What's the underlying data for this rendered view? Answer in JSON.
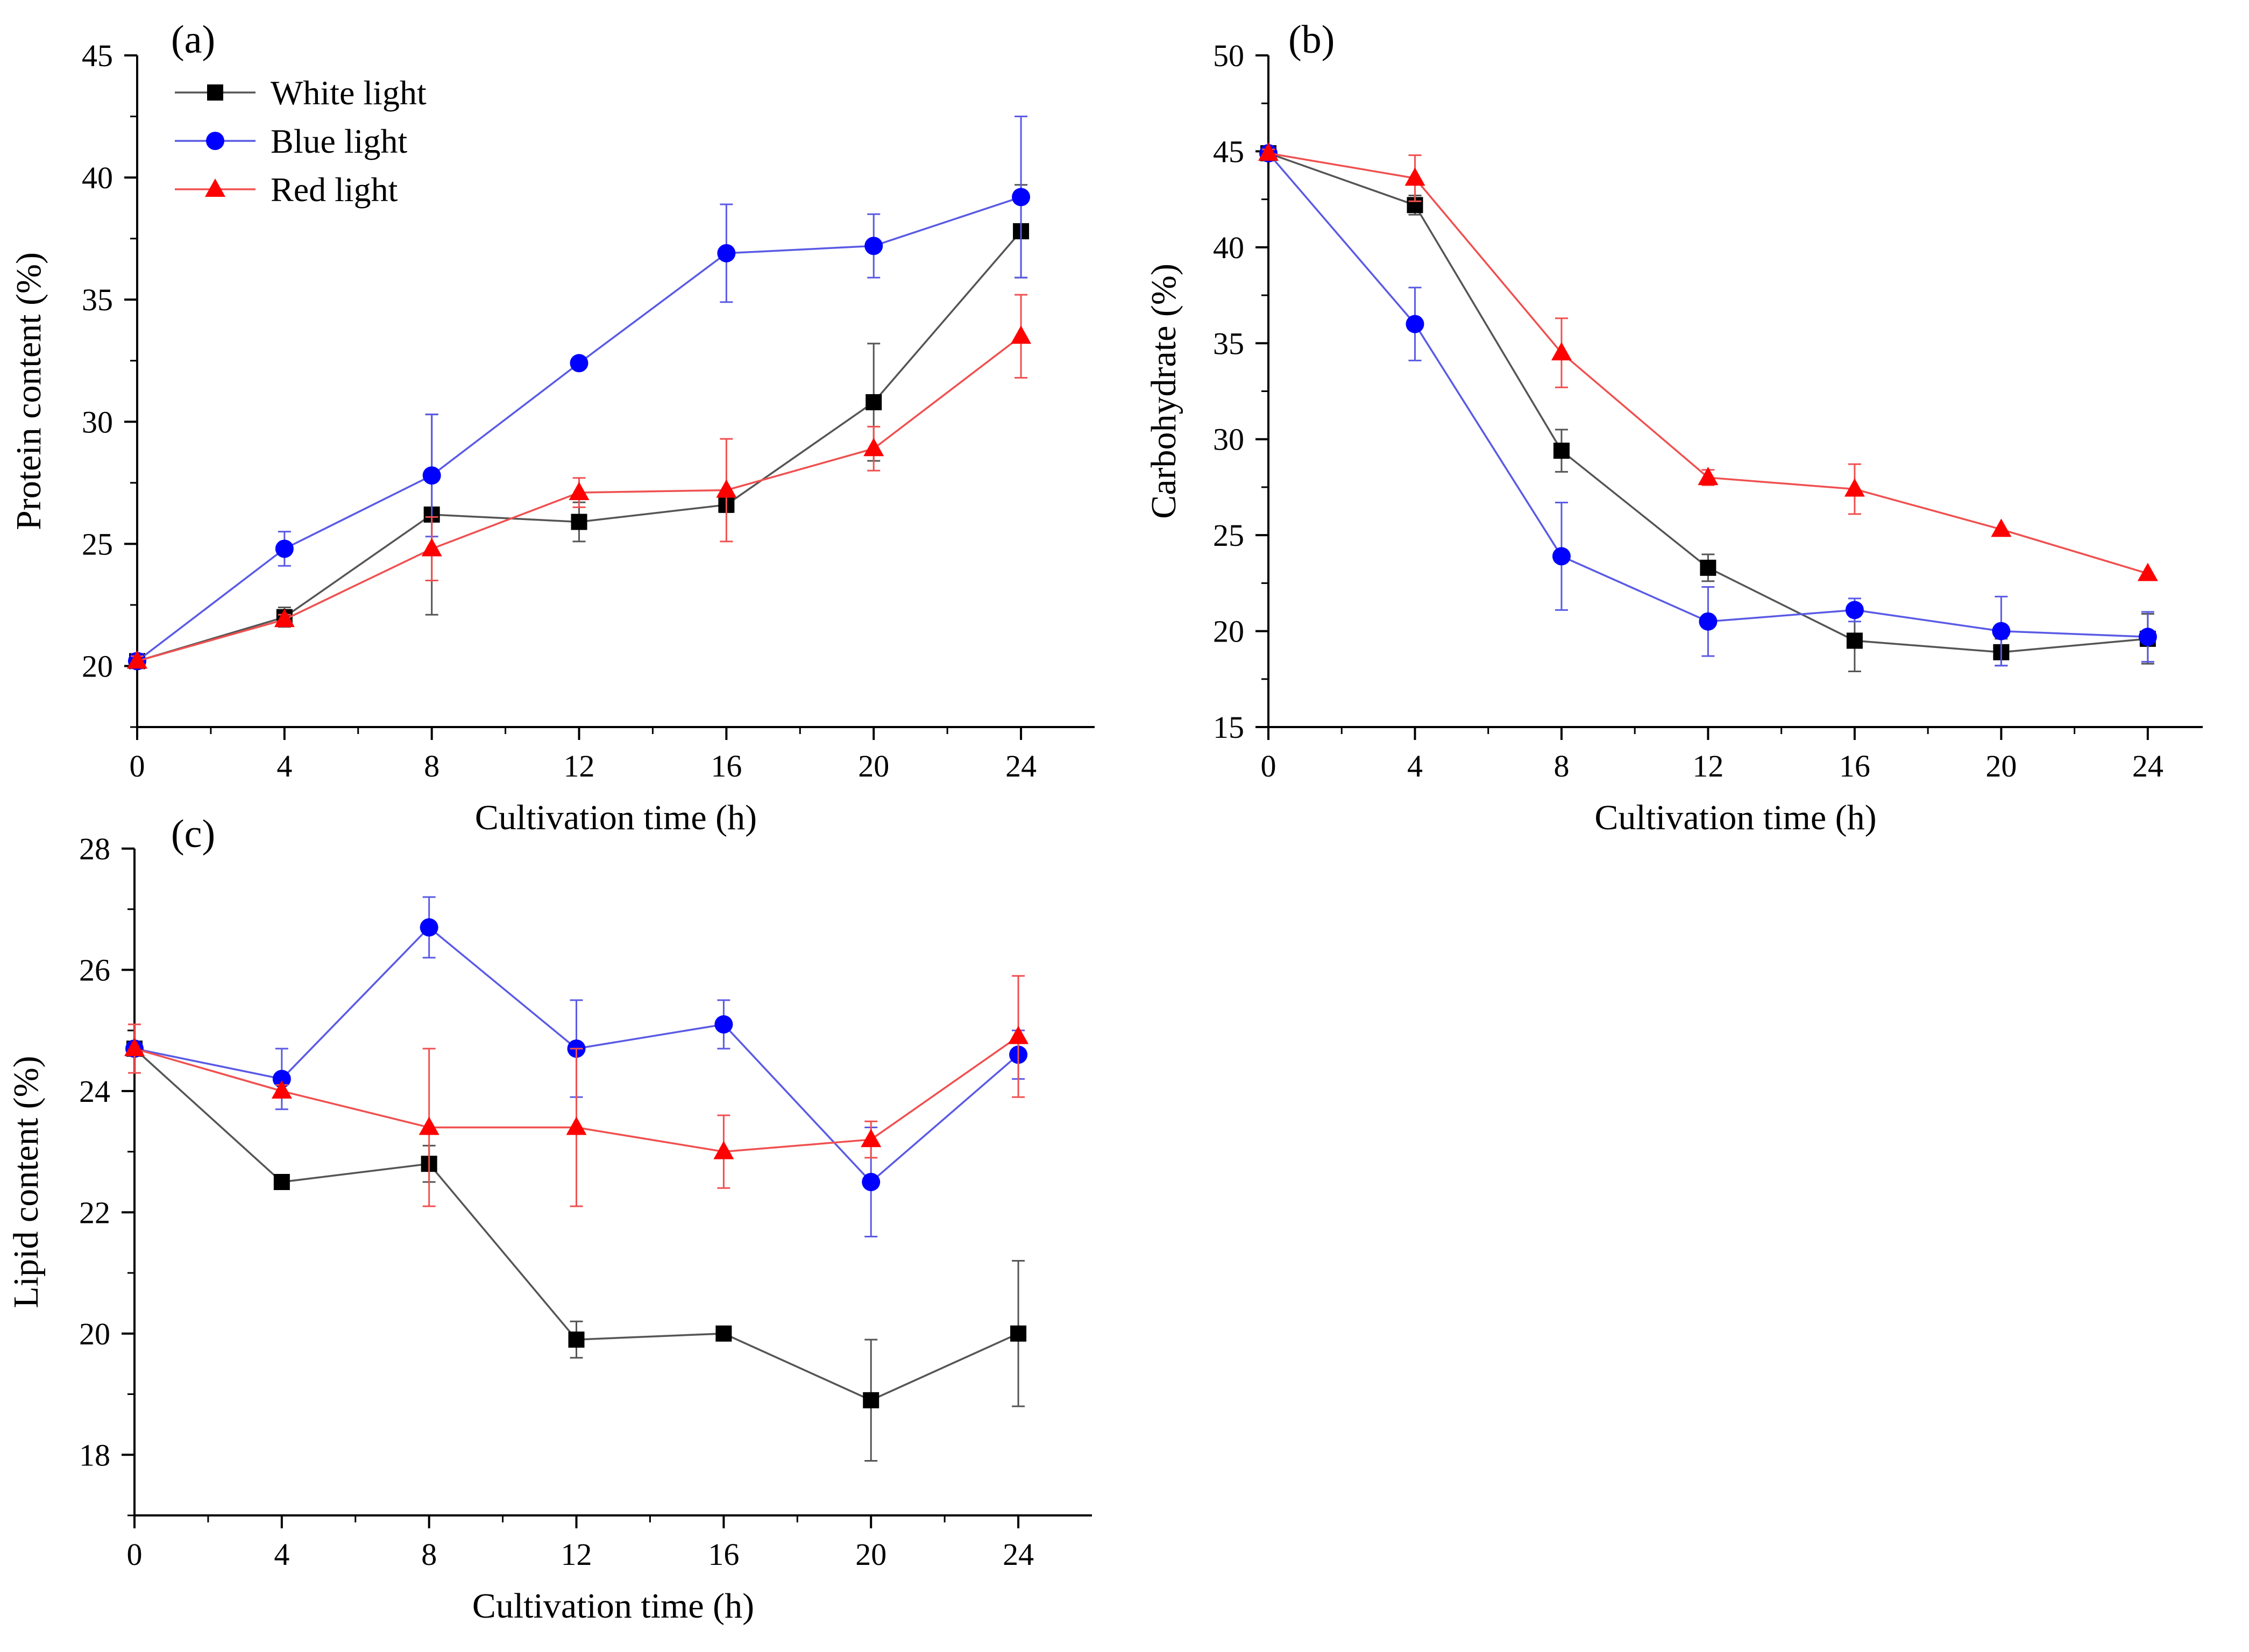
{
  "series_styles": [
    {
      "name": "White light",
      "marker": "square",
      "line_color": "#555555",
      "marker_color": "#000000",
      "error_color": "#555555"
    },
    {
      "name": "Blue light",
      "marker": "circle",
      "line_color": "#5a5ae6",
      "marker_color": "#0000ff",
      "error_color": "#5a5ae6"
    },
    {
      "name": "Red light",
      "marker": "triangle",
      "line_color": "#f05050",
      "marker_color": "#ff0000",
      "error_color": "#f05050"
    }
  ],
  "chart_data": [
    {
      "type": "line",
      "panel_label": "(a)",
      "xlabel": "Cultivation time (h)",
      "ylabel": "Protein content (%)",
      "x": [
        0,
        4,
        8,
        12,
        16,
        20,
        24
      ],
      "xlim": [
        0,
        26
      ],
      "ylim": [
        17.5,
        45
      ],
      "xticks": [
        0,
        4,
        8,
        12,
        16,
        20,
        24
      ],
      "yticks": [
        20,
        25,
        30,
        35,
        40,
        45
      ],
      "legend": "top-left",
      "series": [
        {
          "name": "White light",
          "values": [
            20.2,
            22.0,
            26.2,
            25.9,
            26.6,
            30.8,
            37.8
          ],
          "errors": [
            0.3,
            0.4,
            4.1,
            0.8,
            0.3,
            2.4,
            1.9
          ]
        },
        {
          "name": "Blue light",
          "values": [
            20.2,
            24.8,
            27.8,
            32.4,
            36.9,
            37.2,
            39.2
          ],
          "errors": [
            0.3,
            0.7,
            2.5,
            0.0,
            2.0,
            1.3,
            3.3
          ]
        },
        {
          "name": "Red light",
          "values": [
            20.2,
            21.9,
            24.8,
            27.1,
            27.2,
            28.9,
            33.5
          ],
          "errors": [
            0.2,
            0.2,
            1.3,
            0.6,
            2.1,
            0.9,
            1.7
          ]
        }
      ]
    },
    {
      "type": "line",
      "panel_label": "(b)",
      "xlabel": "Cultivation time (h)",
      "ylabel": "Carbohydrate (%)",
      "x": [
        0,
        4,
        8,
        12,
        16,
        20,
        24
      ],
      "xlim": [
        0,
        25.5
      ],
      "ylim": [
        15,
        50
      ],
      "xticks": [
        0,
        4,
        8,
        12,
        16,
        20,
        24
      ],
      "yticks": [
        15,
        20,
        25,
        30,
        35,
        40,
        45,
        50
      ],
      "series": [
        {
          "name": "White light",
          "values": [
            44.9,
            42.2,
            29.4,
            23.3,
            19.5,
            18.9,
            19.6
          ],
          "errors": [
            0.2,
            0.5,
            1.1,
            0.7,
            1.6,
            0.7,
            1.3
          ]
        },
        {
          "name": "Blue light",
          "values": [
            44.9,
            36.0,
            23.9,
            20.5,
            21.1,
            20.0,
            19.7
          ],
          "errors": [
            0.2,
            1.9,
            2.8,
            1.8,
            0.6,
            1.8,
            1.3
          ]
        },
        {
          "name": "Red light",
          "values": [
            44.9,
            43.6,
            34.5,
            28.0,
            27.4,
            25.3,
            23.0
          ],
          "errors": [
            0.2,
            1.2,
            1.8,
            0.4,
            1.3,
            0.0,
            0.0
          ]
        }
      ]
    },
    {
      "type": "line",
      "panel_label": "(c)",
      "xlabel": "Cultivation time (h)",
      "ylabel": "Lipid content (%)",
      "x": [
        0,
        4,
        8,
        12,
        16,
        20,
        24
      ],
      "xlim": [
        0,
        26
      ],
      "ylim": [
        17,
        28
      ],
      "xticks": [
        0,
        4,
        8,
        12,
        16,
        20,
        24
      ],
      "yticks": [
        18,
        20,
        22,
        24,
        26,
        28
      ],
      "series": [
        {
          "name": "White light",
          "values": [
            24.7,
            22.5,
            22.8,
            19.9,
            20.0,
            18.9,
            20.0
          ],
          "errors": [
            0.1,
            0.0,
            0.3,
            0.3,
            0.0,
            1.0,
            1.2
          ]
        },
        {
          "name": "Blue light",
          "values": [
            24.7,
            24.2,
            26.7,
            24.7,
            25.1,
            22.5,
            24.6
          ],
          "errors": [
            0.1,
            0.5,
            0.5,
            0.8,
            0.4,
            0.9,
            0.4
          ]
        },
        {
          "name": "Red light",
          "values": [
            24.7,
            24.0,
            23.4,
            23.4,
            23.0,
            23.2,
            24.9
          ],
          "errors": [
            0.4,
            0.1,
            1.3,
            1.3,
            0.6,
            0.3,
            1.0
          ]
        }
      ]
    }
  ]
}
